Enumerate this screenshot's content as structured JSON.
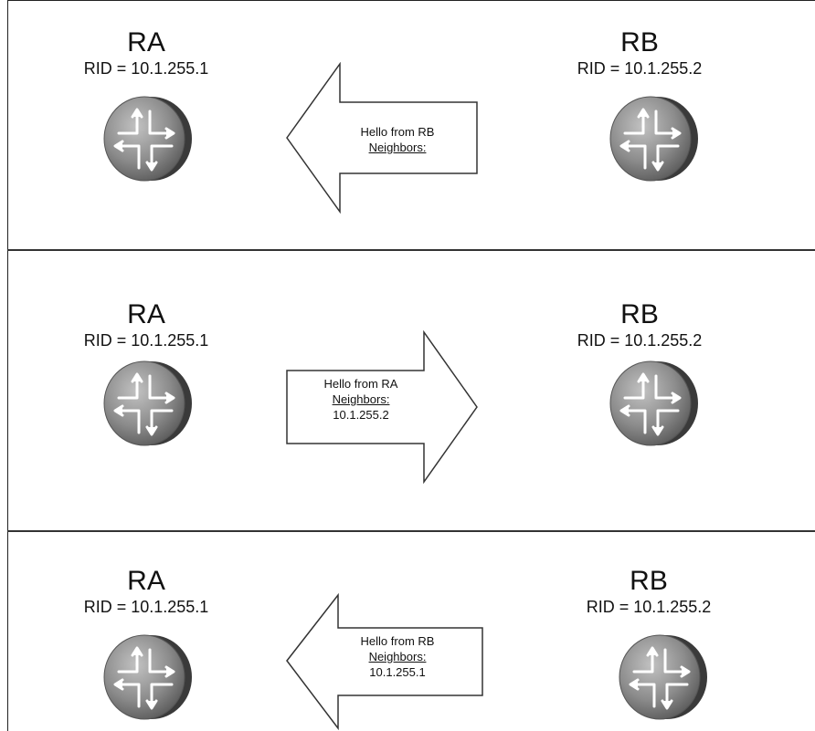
{
  "panels": [
    {
      "ra": {
        "name": "RA",
        "rid": "RID = 10.1.255.1"
      },
      "rb": {
        "name": "RB",
        "rid": "RID = 10.1.255.2"
      },
      "hello": {
        "direction": "left",
        "title": "Hello from RB",
        "neighbors_label": "Neighbors:",
        "neighbors_value": ""
      }
    },
    {
      "ra": {
        "name": "RA",
        "rid": "RID = 10.1.255.1"
      },
      "rb": {
        "name": "RB",
        "rid": "RID = 10.1.255.2"
      },
      "hello": {
        "direction": "right",
        "title": "Hello from RA",
        "neighbors_label": "Neighbors:",
        "neighbors_value": "10.1.255.2"
      }
    },
    {
      "ra": {
        "name": "RA",
        "rid": "RID = 10.1.255.1"
      },
      "rb": {
        "name": "RB",
        "rid": "RID = 10.1.255.2"
      },
      "hello": {
        "direction": "left",
        "title": "Hello from RB",
        "neighbors_label": "Neighbors:",
        "neighbors_value": "10.1.255.1"
      }
    }
  ],
  "colors": {
    "router_body": "#8a8a8a",
    "router_dark": "#4a4a4a",
    "arrow_fill": "#ffffff",
    "arrow_stroke": "#333333",
    "line": "#333333"
  },
  "icons": {
    "router": "router-icon",
    "hello_arrow": "arrow-icon"
  }
}
